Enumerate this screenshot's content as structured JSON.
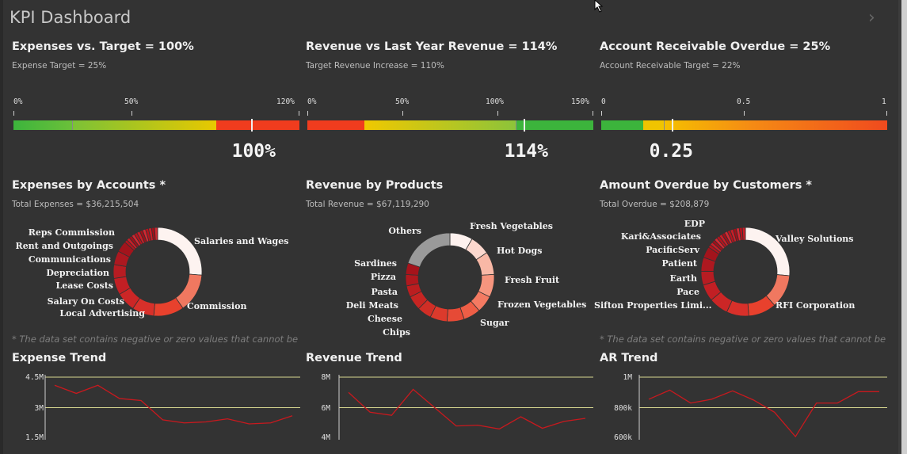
{
  "app": {
    "title": "KPI Dashboard",
    "nav_next": "›"
  },
  "colors": {
    "background": "#333333",
    "green": "#3cb43c",
    "yellow": "#e8c800",
    "red": "#f03c1e",
    "trend_line": "#c8191e",
    "reference_line": "#d8d890"
  },
  "gauges": [
    {
      "title": "Expenses vs. Target = 100%",
      "subtitle": "Expense Target = 25%",
      "ticks": [
        "0%",
        "50%",
        "120%"
      ],
      "value_label": "100%",
      "range": [
        0,
        1.2
      ],
      "value": 1.0,
      "target": 0.25,
      "segments": [
        [
          0,
          0.25,
          "green-to-lime"
        ],
        [
          0.25,
          0.85,
          "lime-to-yellow"
        ],
        [
          0.85,
          1.2,
          "red"
        ]
      ]
    },
    {
      "title": "Revenue vs Last Year Revenue = 114%",
      "subtitle": "Target Revenue Increase = 110%",
      "ticks": [
        "0%",
        "50%",
        "100%",
        "150%"
      ],
      "value_label": "114%",
      "range": [
        0,
        1.5
      ],
      "value": 1.14,
      "target": 1.1,
      "segments": [
        [
          0,
          0.3,
          "red"
        ],
        [
          0.3,
          1.1,
          "yellow-to-green"
        ],
        [
          1.1,
          1.5,
          "green"
        ]
      ]
    },
    {
      "title": "Account Receivable Overdue = 25%",
      "subtitle": "Account Receivable Target = 22%",
      "ticks": [
        "0",
        "0.5",
        "1"
      ],
      "value_label": "0.25",
      "range": [
        0,
        1
      ],
      "value": 0.25,
      "target": 0.22,
      "segments": [
        [
          0,
          0.15,
          "green"
        ],
        [
          0.15,
          0.22,
          "yellow"
        ],
        [
          0.22,
          1,
          "yellow-to-red"
        ]
      ]
    }
  ],
  "donuts": [
    {
      "title": "Expenses by Accounts *",
      "subtitle": "Total Expenses = $36,215,504",
      "note": "* The data set contains negative or zero values that cannot be s...",
      "labels_left": [
        "Reps Commission",
        "Rent and Outgoings",
        "Communications",
        "Depreciation",
        "Lease Costs",
        "Salary On Costs",
        "Local Advertising"
      ],
      "labels_right": [
        "Salaries and Wages",
        "Commission"
      ]
    },
    {
      "title": "Revenue by Products",
      "subtitle": "Total Revenue = $67,119,290",
      "labels_left": [
        "Others",
        "Sardines",
        "Pizza",
        "Pasta",
        "Deli Meats",
        "Cheese",
        "Chips"
      ],
      "labels_right": [
        "Fresh Vegetables",
        "Hot Dogs",
        "Fresh Fruit",
        "Frozen Vegetables",
        "Sugar"
      ]
    },
    {
      "title": "Amount Overdue by Customers *",
      "subtitle": "Total Overdue = $208,879",
      "note": "* The data set contains negative or zero values that cannot be s...",
      "labels_left": [
        "EDP",
        "Kari&Associates",
        "PacificServ",
        "Patient",
        "Earth",
        "Pace",
        "Sifton Properties Limi..."
      ],
      "labels_right": [
        "Valley Solutions",
        "RFI Corporation"
      ]
    }
  ],
  "trends": [
    {
      "title": "Expense Trend",
      "yticks": [
        "4.5M",
        "3M",
        "1.5M"
      ],
      "yrange": [
        1.5,
        4.5
      ],
      "values": [
        4.1,
        3.7,
        4.1,
        3.45,
        3.35,
        2.4,
        2.25,
        2.3,
        2.45,
        2.2,
        2.25,
        2.6
      ]
    },
    {
      "title": "Revenue Trend",
      "yticks": [
        "8M",
        "6M",
        "4M"
      ],
      "yrange": [
        4,
        8
      ],
      "values": [
        7.0,
        5.7,
        5.5,
        7.2,
        6.0,
        4.8,
        4.85,
        4.6,
        5.4,
        4.65,
        5.1,
        5.3
      ]
    },
    {
      "title": "AR Trend",
      "yticks": [
        "1M",
        "800k",
        "600k"
      ],
      "yrange": [
        600,
        1000
      ],
      "values": [
        855,
        915,
        830,
        855,
        910,
        850,
        770,
        610,
        830,
        830,
        905,
        905
      ]
    }
  ],
  "chart_data": [
    {
      "type": "line",
      "title": "Expense Trend",
      "ylim": [
        1.5,
        4.5
      ],
      "series": [
        {
          "values": [
            4.1,
            3.7,
            4.1,
            3.45,
            3.35,
            2.4,
            2.25,
            2.3,
            2.45,
            2.2,
            2.25,
            2.6
          ]
        }
      ]
    },
    {
      "type": "line",
      "title": "Revenue Trend",
      "ylim": [
        4,
        8
      ],
      "series": [
        {
          "values": [
            7.0,
            5.7,
            5.5,
            7.2,
            6.0,
            4.8,
            4.85,
            4.6,
            5.4,
            4.65,
            5.1,
            5.3
          ]
        }
      ]
    },
    {
      "type": "line",
      "title": "AR Trend",
      "ylim": [
        600,
        1000
      ],
      "series": [
        {
          "values": [
            855,
            915,
            830,
            855,
            910,
            850,
            770,
            610,
            830,
            830,
            905,
            905
          ]
        }
      ]
    }
  ]
}
